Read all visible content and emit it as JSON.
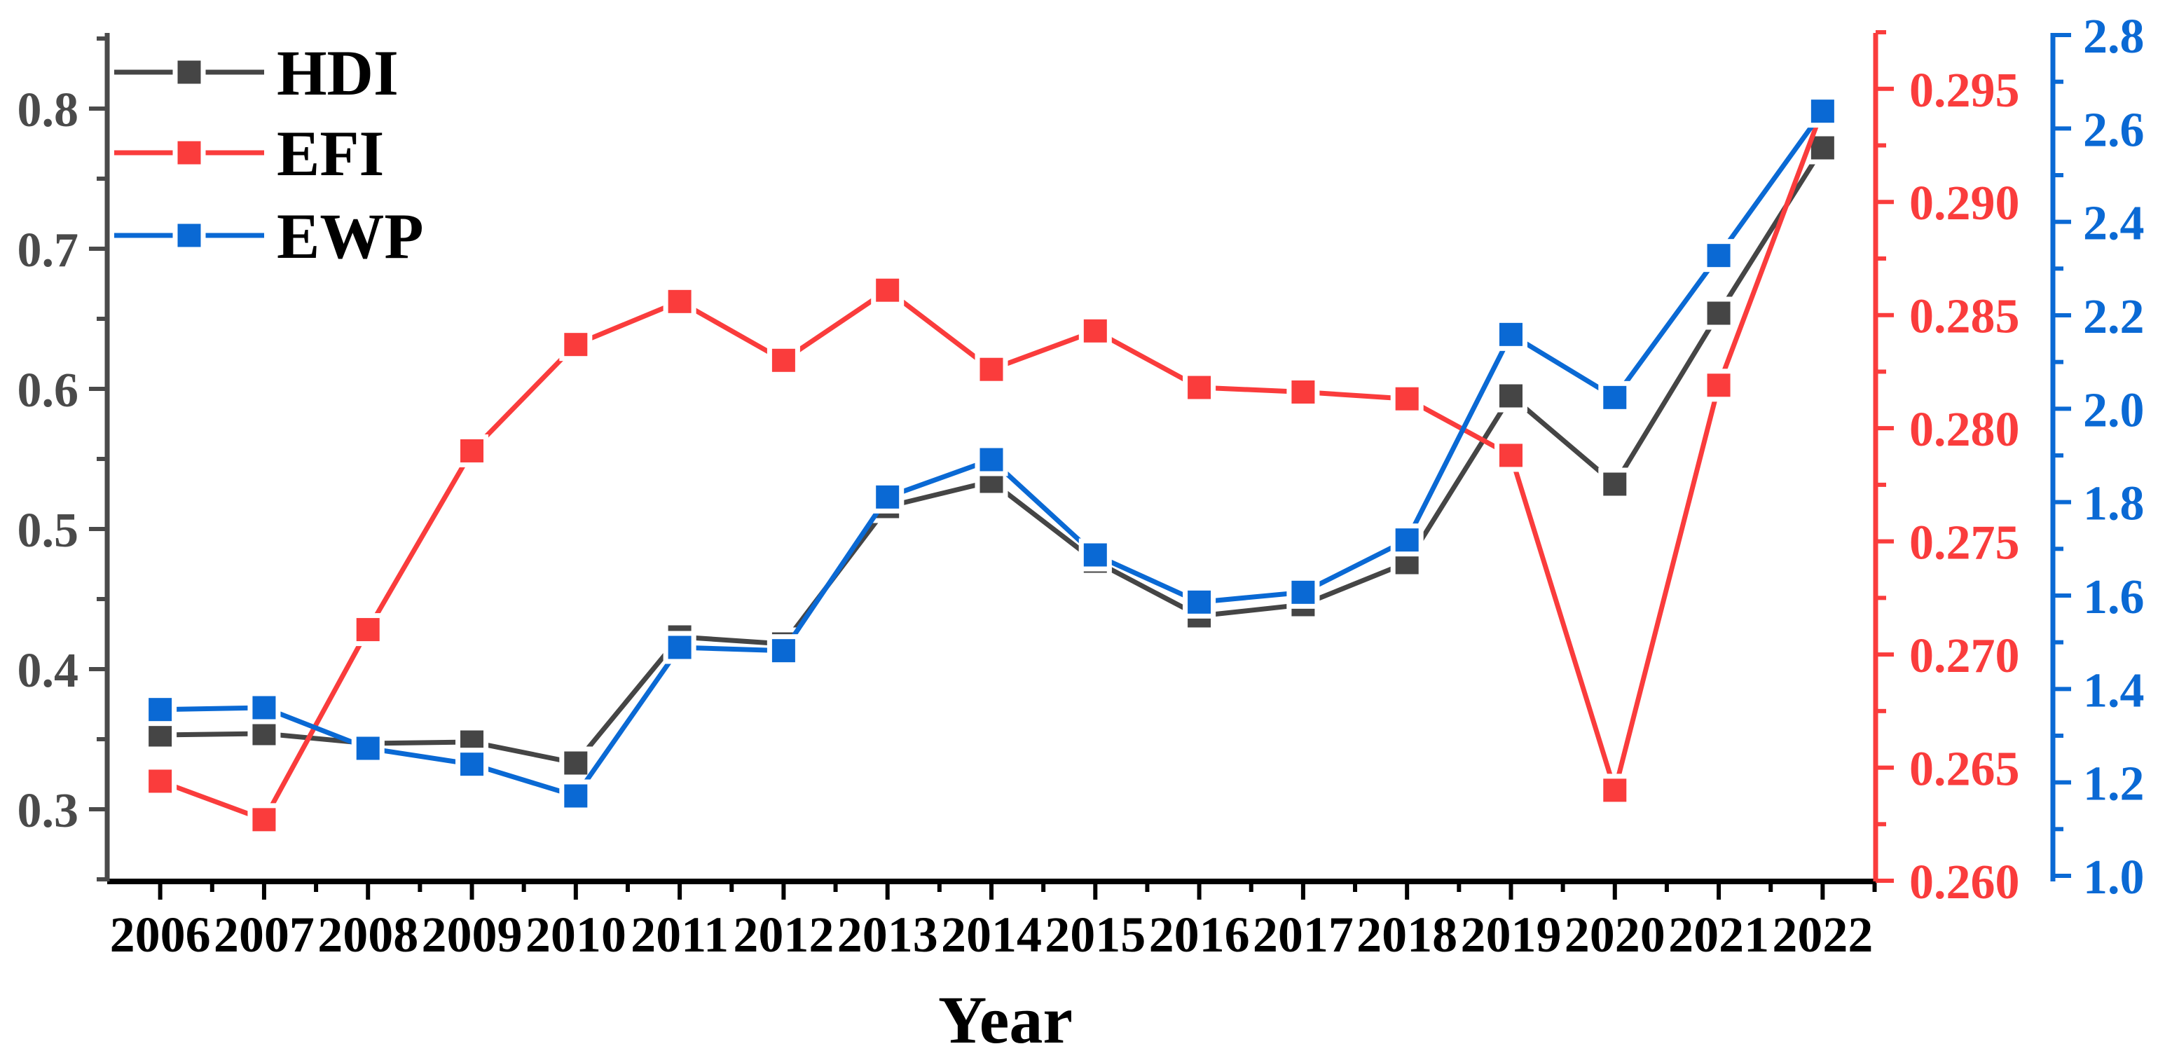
{
  "chart_data": {
    "type": "line",
    "title": "",
    "xlabel": "Year",
    "grid": false,
    "background": "#ffffff",
    "x_axis_color": "#000000",
    "x": [
      2006,
      2007,
      2008,
      2009,
      2010,
      2011,
      2012,
      2013,
      2014,
      2015,
      2016,
      2017,
      2018,
      2019,
      2020,
      2021,
      2022
    ],
    "xlim": [
      2005.49,
      2022.51
    ],
    "series": [
      {
        "name": "HDI",
        "axis": "left",
        "color": "#454545",
        "marker": "square",
        "values": [
          0.353,
          0.354,
          0.347,
          0.348,
          0.333,
          0.423,
          0.418,
          0.516,
          0.534,
          0.477,
          0.438,
          0.446,
          0.476,
          0.595,
          0.532,
          0.654,
          0.772
        ]
      },
      {
        "name": "EFI",
        "axis": "right_efi",
        "color": "#fa3c3c",
        "marker": "square",
        "values": [
          0.2644,
          0.2627,
          0.2711,
          0.279,
          0.2837,
          0.2856,
          0.283,
          0.2861,
          0.2826,
          0.2843,
          0.2818,
          0.2816,
          0.2813,
          0.2788,
          0.264,
          0.2819,
          0.2941
        ]
      },
      {
        "name": "EWP",
        "axis": "right_ewp",
        "color": "#0a69d4",
        "marker": "square",
        "values": [
          1.356,
          1.36,
          1.273,
          1.239,
          1.171,
          1.489,
          1.482,
          1.811,
          1.891,
          1.687,
          1.586,
          1.607,
          1.719,
          2.159,
          2.024,
          2.328,
          2.637
        ]
      }
    ],
    "axes": {
      "left": {
        "range": [
          0.2485,
          0.854
        ],
        "ticks": [
          0.3,
          0.4,
          0.5,
          0.6,
          0.7,
          0.8
        ],
        "tick_step": 0.1,
        "decimals": 1,
        "color": "#4a4a4a"
      },
      "right_efi": {
        "range": [
          0.25997,
          0.29747
        ],
        "ticks": [
          0.26,
          0.265,
          0.27,
          0.275,
          0.28,
          0.285,
          0.29,
          0.295
        ],
        "tick_step": 0.005,
        "decimals": 3,
        "color": "#fa3c3c"
      },
      "right_ewp": {
        "range": [
          0.988,
          2.8045
        ],
        "ticks": [
          1.0,
          1.2,
          1.4,
          1.6,
          1.8,
          2.0,
          2.2,
          2.4,
          2.6,
          2.8
        ],
        "tick_step": 0.2,
        "decimals": 1,
        "color": "#0a69d4"
      }
    },
    "legend": {
      "labels": [
        "HDI",
        "EFI",
        "EWP"
      ],
      "position": "top-left"
    }
  }
}
